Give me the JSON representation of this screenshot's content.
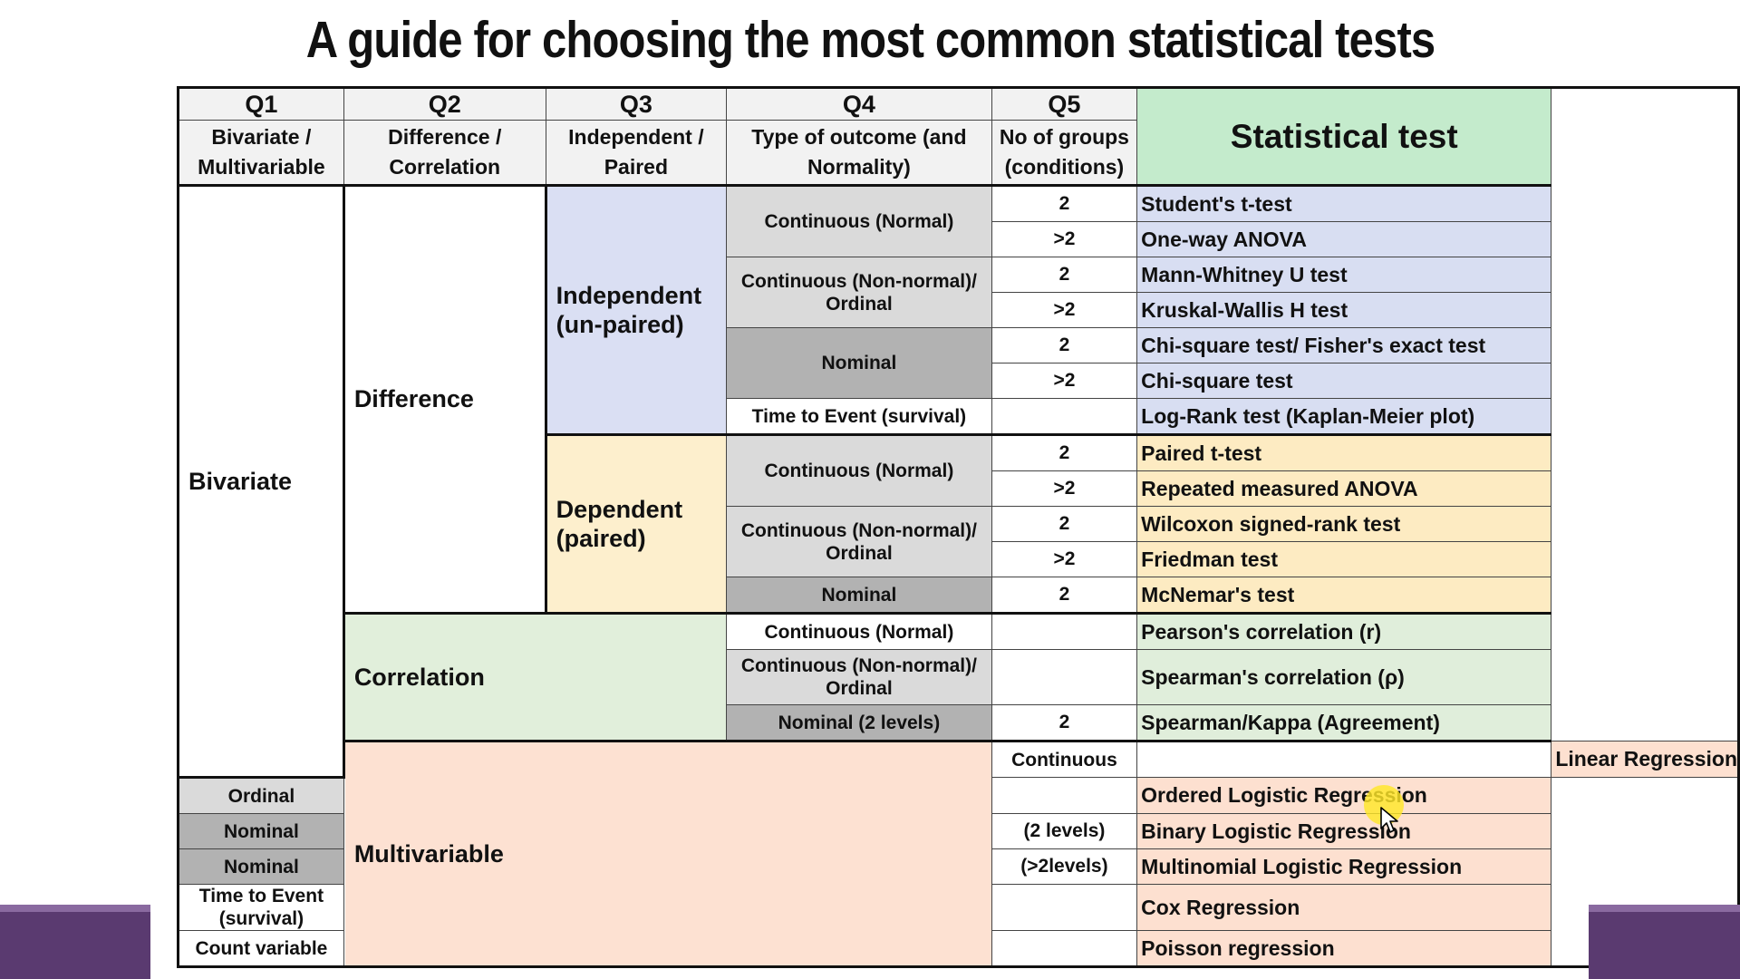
{
  "title": "A guide for choosing the most common statistical tests",
  "header": {
    "q1": "Q1",
    "q2": "Q2",
    "q3": "Q3",
    "q4": "Q4",
    "q5": "Q5",
    "q1_sub_a": "Bivariate /",
    "q1_sub_b": "Multivariable",
    "q2_sub_a": "Difference /",
    "q2_sub_b": "Correlation",
    "q3_sub_a": "Independent /",
    "q3_sub_b": "Paired",
    "q4_sub_a": "Type of outcome (and",
    "q4_sub_b": "Normality)",
    "q5_sub_a": "No of groups",
    "q5_sub_b": "(conditions)",
    "statistical_test": "Statistical test"
  },
  "labels": {
    "bivariate": "Bivariate",
    "multivariable": "Multivariable",
    "difference": "Difference",
    "correlation": "Correlation",
    "independent_a": "Independent",
    "independent_b": "(un-paired)",
    "dependent_a": "Dependent",
    "dependent_b": "(paired)"
  },
  "outcome_types": {
    "continuous_normal": "Continuous (Normal)",
    "continuous_nonnormal_a": "Continuous (Non-normal)/",
    "continuous_nonnormal_b": "Ordinal",
    "nominal": "Nominal",
    "time_to_event": "Time to Event (survival)",
    "nominal_2_levels": "Nominal (2 levels)",
    "continuous": "Continuous",
    "ordinal": "Ordinal",
    "count_variable": "Count variable"
  },
  "groups": {
    "two": "2",
    "more_than_two": ">2",
    "two_levels": "(2 levels)",
    "more_than_two_levels": "(>2levels)"
  },
  "tests": {
    "students_t": "Student's t-test",
    "one_way_anova": "One-way ANOVA",
    "mann_whitney": "Mann-Whitney U test",
    "kruskal_wallis": "Kruskal-Wallis H test",
    "chi_fisher": "Chi-square test/ Fisher's exact test",
    "chi_square": "Chi-square test",
    "log_rank": "Log-Rank test (Kaplan-Meier plot)",
    "paired_t": "Paired t-test",
    "repeated_anova": "Repeated measured ANOVA",
    "wilcoxon": "Wilcoxon signed-rank test",
    "friedman": "Friedman test",
    "mcnemar": "McNemar's test",
    "pearson": "Pearson's correlation (r)",
    "spearman": "Spearman's correlation  (ρ)",
    "spearman_kappa": "Spearman/Kappa (Agreement)",
    "linear_regression": "Linear Regression",
    "ordered_logistic": "Ordered Logistic Regression",
    "binary_logistic": "Binary Logistic Regression",
    "multinomial_logistic": "Multinomial Logistic Regression",
    "cox": "Cox Regression",
    "poisson": "Poisson regression"
  },
  "colors": {
    "independent_bg": "#dadff3",
    "dependent_bg": "#fdefcd",
    "correlation_bg": "#e1efdb",
    "multivariable_bg": "#fde1d2",
    "header_red": "#e0261b",
    "stat_header_green": "#0e5a1a",
    "two_groups_red": "#cc1c14",
    "many_groups_blue": "#264a9a",
    "slide_accent_purple": "#5a3a70"
  }
}
